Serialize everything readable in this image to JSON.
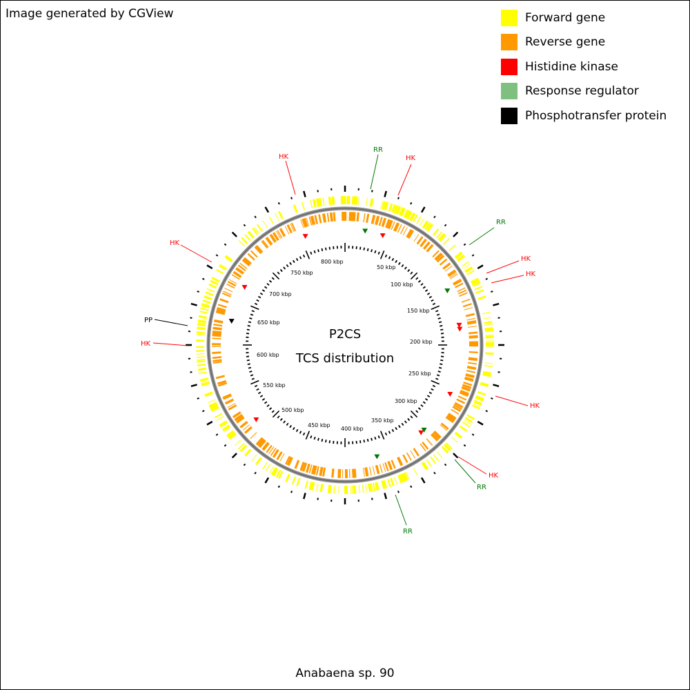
{
  "credit": "Image generated by CGView",
  "caption": "Anabaena sp. 90",
  "center_title": "P2CS",
  "center_subtitle": "TCS distribution",
  "legend": [
    {
      "label": "Forward gene",
      "color": "#ffff00"
    },
    {
      "label": "Reverse gene",
      "color": "#ff9900"
    },
    {
      "label": "Histidine kinase",
      "color": "#ff0000"
    },
    {
      "label": "Response regulator",
      "color": "#7fbf7f"
    },
    {
      "label": "Phosphotransfer protein",
      "color": "#000000"
    }
  ],
  "scale": {
    "unit": "kbp",
    "labels": [
      "50 kbp",
      "100 kbp",
      "150 kbp",
      "200 kbp",
      "250 kbp",
      "300 kbp",
      "350 kbp",
      "400 kbp",
      "450 kbp",
      "500 kbp",
      "550 kbp",
      "600 kbp",
      "650 kbp",
      "700 kbp",
      "750 kbp",
      "800 kbp"
    ]
  },
  "annotations": [
    {
      "label": "RR",
      "type": "RR",
      "color": "#007700"
    },
    {
      "label": "HK",
      "type": "HK",
      "color": "#ff0000"
    },
    {
      "label": "RR",
      "type": "RR",
      "color": "#007700"
    },
    {
      "label": "HK",
      "type": "HK",
      "color": "#ff0000"
    },
    {
      "label": "HK",
      "type": "HK",
      "color": "#ff0000"
    },
    {
      "label": "HK",
      "type": "HK",
      "color": "#ff0000"
    },
    {
      "label": "HK",
      "type": "HK",
      "color": "#ff0000"
    },
    {
      "label": "RR",
      "type": "RR",
      "color": "#007700"
    },
    {
      "label": "RR",
      "type": "RR",
      "color": "#007700"
    },
    {
      "label": "HK",
      "type": "HK",
      "color": "#ff0000"
    },
    {
      "label": "PP",
      "type": "PP",
      "color": "#000000"
    },
    {
      "label": "HK",
      "type": "HK",
      "color": "#ff0000"
    },
    {
      "label": "HK",
      "type": "HK",
      "color": "#ff0000"
    }
  ]
}
